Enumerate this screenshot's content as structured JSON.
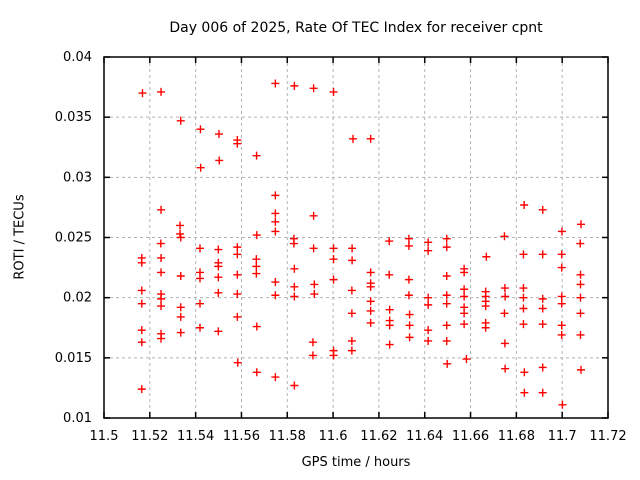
{
  "figure": {
    "background": "#ffffff",
    "text_color": "#000000"
  },
  "chart_data": {
    "type": "scatter",
    "title": "Day 006 of 2025, Rate Of TEC Index for receiver cpnt",
    "xlabel": "GPS time / hours",
    "ylabel": "ROTI / TECUs",
    "xlim": [
      11.5,
      11.72
    ],
    "ylim": [
      0.01,
      0.04
    ],
    "xticks": [
      {
        "v": 11.5,
        "label": "11.5"
      },
      {
        "v": 11.52,
        "label": "11.52"
      },
      {
        "v": 11.54,
        "label": "11.54"
      },
      {
        "v": 11.56,
        "label": "11.56"
      },
      {
        "v": 11.58,
        "label": "11.58"
      },
      {
        "v": 11.6,
        "label": "11.6"
      },
      {
        "v": 11.62,
        "label": "11.62"
      },
      {
        "v": 11.64,
        "label": "11.64"
      },
      {
        "v": 11.66,
        "label": "11.66"
      },
      {
        "v": 11.68,
        "label": "11.68"
      },
      {
        "v": 11.7,
        "label": "11.7"
      },
      {
        "v": 11.72,
        "label": "11.72"
      }
    ],
    "yticks": [
      {
        "v": 0.01,
        "label": "0.01"
      },
      {
        "v": 0.015,
        "label": "0.015"
      },
      {
        "v": 0.02,
        "label": "0.02"
      },
      {
        "v": 0.025,
        "label": "0.025"
      },
      {
        "v": 0.03,
        "label": "0.03"
      },
      {
        "v": 0.035,
        "label": "0.035"
      },
      {
        "v": 0.04,
        "label": "0.04"
      }
    ],
    "grid": true,
    "grid_color": "#b3b3b3",
    "border_color": "#000000",
    "legend": "none",
    "marker": "plus",
    "marker_color": "#ff0000",
    "marker_size": 8,
    "points": [
      [
        11.5168,
        0.037
      ],
      [
        11.5249,
        0.0371
      ],
      [
        11.5335,
        0.0347
      ],
      [
        11.5421,
        0.034
      ],
      [
        11.5502,
        0.0336
      ],
      [
        11.5582,
        0.0331
      ],
      [
        11.5582,
        0.0328
      ],
      [
        11.5666,
        0.0318
      ],
      [
        11.5503,
        0.0314
      ],
      [
        11.5422,
        0.0308
      ],
      [
        11.5249,
        0.0273
      ],
      [
        11.5332,
        0.026
      ],
      [
        11.5332,
        0.0253
      ],
      [
        11.5667,
        0.0252
      ],
      [
        11.5248,
        0.0245
      ],
      [
        11.5748,
        0.0378
      ],
      [
        11.5831,
        0.0376
      ],
      [
        11.5915,
        0.0374
      ],
      [
        11.6002,
        0.0371
      ],
      [
        11.6087,
        0.0332
      ],
      [
        11.6164,
        0.0332
      ],
      [
        11.5748,
        0.0285
      ],
      [
        11.5748,
        0.027
      ],
      [
        11.5748,
        0.0263
      ],
      [
        11.5748,
        0.0255
      ],
      [
        11.5915,
        0.0268
      ],
      [
        11.6834,
        0.0277
      ],
      [
        11.6915,
        0.0273
      ],
      [
        11.7082,
        0.0261
      ],
      [
        11.6999,
        0.0255
      ],
      [
        11.6748,
        0.0251
      ],
      [
        11.5165,
        0.0233
      ],
      [
        11.5165,
        0.0229
      ],
      [
        11.5165,
        0.0206
      ],
      [
        11.5165,
        0.0195
      ],
      [
        11.5165,
        0.0173
      ],
      [
        11.5165,
        0.0163
      ],
      [
        11.5165,
        0.0124
      ],
      [
        11.5249,
        0.0233
      ],
      [
        11.5249,
        0.0221
      ],
      [
        11.5249,
        0.0203
      ],
      [
        11.5249,
        0.0199
      ],
      [
        11.5249,
        0.0193
      ],
      [
        11.5249,
        0.017
      ],
      [
        11.5249,
        0.0166
      ],
      [
        11.5335,
        0.025
      ],
      [
        11.5335,
        0.0218
      ],
      [
        11.5335,
        0.0192
      ],
      [
        11.5335,
        0.0184
      ],
      [
        11.5335,
        0.0171
      ],
      [
        11.5419,
        0.0241
      ],
      [
        11.5419,
        0.0221
      ],
      [
        11.5419,
        0.0216
      ],
      [
        11.5419,
        0.0195
      ],
      [
        11.5419,
        0.0175
      ],
      [
        11.5499,
        0.024
      ],
      [
        11.5499,
        0.0229
      ],
      [
        11.5499,
        0.0226
      ],
      [
        11.5499,
        0.0217
      ],
      [
        11.5499,
        0.0204
      ],
      [
        11.5499,
        0.0172
      ],
      [
        11.5582,
        0.0242
      ],
      [
        11.5582,
        0.0236
      ],
      [
        11.5582,
        0.0219
      ],
      [
        11.5582,
        0.0203
      ],
      [
        11.5582,
        0.0184
      ],
      [
        11.5584,
        0.0146
      ],
      [
        11.5665,
        0.0232
      ],
      [
        11.5665,
        0.0226
      ],
      [
        11.5665,
        0.022
      ],
      [
        11.5667,
        0.0176
      ],
      [
        11.5667,
        0.0138
      ],
      [
        11.5748,
        0.0213
      ],
      [
        11.5748,
        0.0202
      ],
      [
        11.5748,
        0.0134
      ],
      [
        11.5829,
        0.0249
      ],
      [
        11.5829,
        0.0245
      ],
      [
        11.5831,
        0.0224
      ],
      [
        11.5831,
        0.0209
      ],
      [
        11.5831,
        0.0201
      ],
      [
        11.5831,
        0.0127
      ],
      [
        11.5915,
        0.0241
      ],
      [
        11.5918,
        0.0211
      ],
      [
        11.5918,
        0.0203
      ],
      [
        11.5912,
        0.0163
      ],
      [
        11.5912,
        0.0152
      ],
      [
        11.6002,
        0.0241
      ],
      [
        11.6002,
        0.0232
      ],
      [
        11.6002,
        0.0215
      ],
      [
        11.6002,
        0.0156
      ],
      [
        11.6002,
        0.0152
      ],
      [
        11.6083,
        0.0241
      ],
      [
        11.6083,
        0.0231
      ],
      [
        11.6082,
        0.0206
      ],
      [
        11.6082,
        0.0187
      ],
      [
        11.6082,
        0.0164
      ],
      [
        11.6082,
        0.0156
      ],
      [
        11.6164,
        0.0221
      ],
      [
        11.6164,
        0.0212
      ],
      [
        11.6164,
        0.0209
      ],
      [
        11.6164,
        0.0197
      ],
      [
        11.6164,
        0.0189
      ],
      [
        11.6164,
        0.0179
      ],
      [
        11.6245,
        0.0247
      ],
      [
        11.6245,
        0.0219
      ],
      [
        11.6247,
        0.019
      ],
      [
        11.6247,
        0.0181
      ],
      [
        11.6247,
        0.0177
      ],
      [
        11.6247,
        0.0161
      ],
      [
        11.6331,
        0.0249
      ],
      [
        11.6331,
        0.0243
      ],
      [
        11.6331,
        0.0215
      ],
      [
        11.6331,
        0.0202
      ],
      [
        11.6334,
        0.0186
      ],
      [
        11.6334,
        0.0177
      ],
      [
        11.6334,
        0.0167
      ],
      [
        11.6415,
        0.0246
      ],
      [
        11.6415,
        0.0239
      ],
      [
        11.6415,
        0.02
      ],
      [
        11.6415,
        0.0194
      ],
      [
        11.6415,
        0.0173
      ],
      [
        11.6415,
        0.0164
      ],
      [
        11.6496,
        0.0249
      ],
      [
        11.6496,
        0.0242
      ],
      [
        11.6496,
        0.0218
      ],
      [
        11.6496,
        0.0202
      ],
      [
        11.6496,
        0.0195
      ],
      [
        11.6496,
        0.0177
      ],
      [
        11.6496,
        0.0164
      ],
      [
        11.6498,
        0.0145
      ],
      [
        11.6572,
        0.0224
      ],
      [
        11.6572,
        0.0221
      ],
      [
        11.6572,
        0.0207
      ],
      [
        11.6572,
        0.0201
      ],
      [
        11.6572,
        0.0192
      ],
      [
        11.6572,
        0.0187
      ],
      [
        11.6572,
        0.0178
      ],
      [
        11.6582,
        0.0149
      ],
      [
        11.6669,
        0.0234
      ],
      [
        11.6666,
        0.0205
      ],
      [
        11.6666,
        0.0201
      ],
      [
        11.6666,
        0.0197
      ],
      [
        11.6666,
        0.0193
      ],
      [
        11.6666,
        0.0179
      ],
      [
        11.6666,
        0.0175
      ],
      [
        11.675,
        0.0208
      ],
      [
        11.6751,
        0.0201
      ],
      [
        11.6748,
        0.0187
      ],
      [
        11.675,
        0.0162
      ],
      [
        11.6751,
        0.0141
      ],
      [
        11.6831,
        0.0236
      ],
      [
        11.6831,
        0.0208
      ],
      [
        11.6831,
        0.02
      ],
      [
        11.6831,
        0.0191
      ],
      [
        11.6831,
        0.0178
      ],
      [
        11.6835,
        0.0138
      ],
      [
        11.6835,
        0.0121
      ],
      [
        11.6915,
        0.0236
      ],
      [
        11.6915,
        0.0199
      ],
      [
        11.6915,
        0.0191
      ],
      [
        11.6915,
        0.0178
      ],
      [
        11.6915,
        0.0142
      ],
      [
        11.6915,
        0.0121
      ],
      [
        11.6998,
        0.0236
      ],
      [
        11.6998,
        0.0225
      ],
      [
        11.6998,
        0.0201
      ],
      [
        11.6998,
        0.0195
      ],
      [
        11.6998,
        0.0177
      ],
      [
        11.6998,
        0.0169
      ],
      [
        11.7001,
        0.0111
      ],
      [
        11.7079,
        0.0245
      ],
      [
        11.708,
        0.0219
      ],
      [
        11.708,
        0.0211
      ],
      [
        11.708,
        0.02
      ],
      [
        11.708,
        0.0187
      ],
      [
        11.708,
        0.0169
      ],
      [
        11.7082,
        0.014
      ]
    ]
  }
}
